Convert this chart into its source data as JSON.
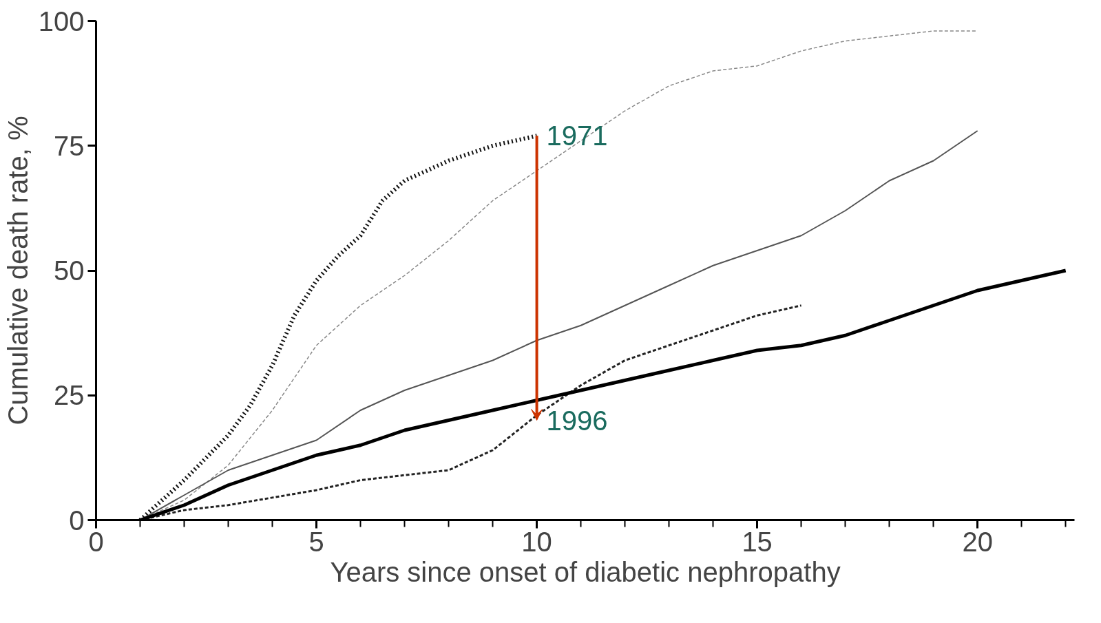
{
  "chart_data": {
    "type": "line",
    "xlabel": "Years since onset of diabetic nephropathy",
    "ylabel": "Cumulative death rate, %",
    "xlim": [
      0,
      22.2
    ],
    "ylim": [
      0,
      100
    ],
    "xticks": [
      0,
      5,
      10,
      15,
      20
    ],
    "yticks": [
      0,
      25,
      50,
      75,
      100
    ],
    "grid": false,
    "marker": "none",
    "series": [
      {
        "color": "#111111",
        "line_style": "dotted",
        "x": [
          1,
          2,
          3,
          3.5,
          4,
          4.5,
          5,
          5.5,
          6,
          6.5,
          7,
          8,
          9,
          10
        ],
        "values": [
          0,
          8,
          17,
          23,
          31,
          41,
          48,
          53,
          57,
          64,
          68,
          72,
          75,
          77
        ]
      },
      {
        "color": "#888888",
        "line_style": "dashed",
        "x": [
          1,
          2,
          3,
          4,
          5,
          6,
          7,
          8,
          9,
          10,
          11,
          12,
          13,
          14,
          15,
          16,
          17,
          18,
          19,
          20
        ],
        "values": [
          0,
          4,
          11,
          22,
          35,
          43,
          49,
          56,
          64,
          70,
          76,
          82,
          87,
          90,
          91,
          94,
          96,
          97,
          98,
          98
        ]
      },
      {
        "color": "#555555",
        "line_style": "solid",
        "x": [
          1,
          2,
          3,
          4,
          5,
          6,
          7,
          8,
          9,
          10,
          11,
          12,
          13,
          14,
          15,
          16,
          17,
          18,
          19,
          20
        ],
        "values": [
          0,
          5,
          10,
          13,
          16,
          22,
          26,
          29,
          32,
          36,
          39,
          43,
          47,
          51,
          54,
          57,
          62,
          68,
          72,
          78
        ]
      },
      {
        "color": "#222222",
        "line_style": "dashed",
        "x": [
          1,
          2,
          3,
          4,
          5,
          6,
          7,
          8,
          9,
          10,
          11,
          12,
          13,
          14,
          15,
          16
        ],
        "values": [
          0,
          2,
          3,
          4.5,
          6,
          8,
          9,
          10,
          14,
          21,
          27,
          32,
          35,
          38,
          41,
          43
        ]
      },
      {
        "color": "#000000",
        "line_style": "solid",
        "x": [
          1,
          2,
          3,
          4,
          5,
          6,
          7,
          8,
          9,
          10,
          11,
          12,
          13,
          14,
          15,
          16,
          17,
          18,
          19,
          20,
          21,
          22
        ],
        "values": [
          0,
          3,
          7,
          10,
          13,
          15,
          18,
          20,
          22,
          24,
          26,
          28,
          30,
          32,
          34,
          35,
          37,
          40,
          43,
          46,
          48,
          50
        ]
      }
    ],
    "annotations": [
      {
        "text": "1971",
        "x": 10,
        "y": 77
      },
      {
        "text": "1996",
        "x": 10,
        "y": 20
      }
    ]
  }
}
